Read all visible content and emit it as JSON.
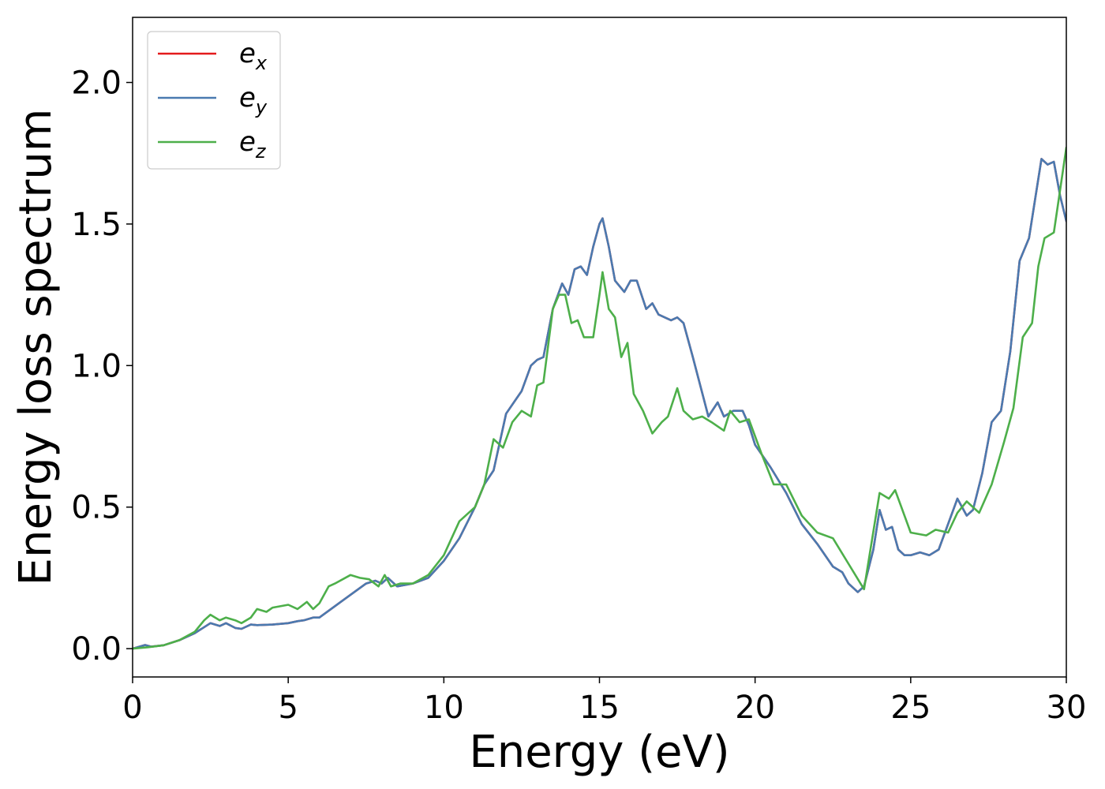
{
  "chart_data": {
    "type": "line",
    "title": "",
    "xlabel": "Energy (eV)",
    "ylabel": "Energy loss spectrum",
    "xlim": [
      0,
      30
    ],
    "ylim": [
      -0.1,
      2.23
    ],
    "xticks": [
      0,
      5,
      10,
      15,
      20,
      25,
      30
    ],
    "xtick_labels": [
      "0",
      "5",
      "10",
      "15",
      "20",
      "25",
      "30"
    ],
    "yticks": [
      0.0,
      0.5,
      1.0,
      1.5,
      2.0
    ],
    "ytick_labels": [
      "0.0",
      "0.5",
      "1.0",
      "1.5",
      "2.0"
    ],
    "grid": false,
    "legend_position": "top-left",
    "series": [
      {
        "name": "e_x",
        "label_main": "e",
        "label_sub": "x",
        "color": "#e41a1c",
        "x": [
          0,
          0.4,
          0.6,
          1.0,
          1.5,
          2.0,
          2.5,
          2.8,
          3.0,
          3.3,
          3.5,
          3.8,
          4.0,
          4.5,
          5.0,
          5.3,
          5.5,
          5.8,
          6.0,
          6.5,
          7.0,
          7.5,
          7.8,
          8.0,
          8.2,
          8.5,
          9.0,
          9.5,
          10.0,
          10.5,
          11.0,
          11.3,
          11.6,
          12.0,
          12.5,
          12.8,
          13.0,
          13.2,
          13.5,
          13.8,
          14.0,
          14.2,
          14.4,
          14.6,
          14.8,
          15.0,
          15.1,
          15.3,
          15.5,
          15.8,
          16.0,
          16.2,
          16.5,
          16.7,
          16.9,
          17.1,
          17.3,
          17.5,
          17.7,
          18.0,
          18.5,
          18.8,
          19.0,
          19.3,
          19.6,
          19.8,
          20.0,
          20.5,
          21.0,
          21.5,
          22.0,
          22.5,
          22.8,
          23.0,
          23.3,
          23.5,
          23.8,
          24.0,
          24.2,
          24.4,
          24.6,
          24.8,
          25.0,
          25.3,
          25.6,
          25.9,
          26.2,
          26.5,
          26.8,
          27.0,
          27.3,
          27.6,
          27.9,
          28.2,
          28.5,
          28.8,
          29.0,
          29.2,
          29.4,
          29.6,
          29.8,
          30.0
        ],
        "values": [
          0.0,
          0.013,
          0.007,
          0.012,
          0.03,
          0.055,
          0.09,
          0.08,
          0.09,
          0.073,
          0.07,
          0.085,
          0.083,
          0.085,
          0.09,
          0.097,
          0.1,
          0.11,
          0.11,
          0.15,
          0.19,
          0.23,
          0.24,
          0.23,
          0.25,
          0.22,
          0.23,
          0.25,
          0.31,
          0.39,
          0.5,
          0.58,
          0.63,
          0.83,
          0.91,
          1.0,
          1.02,
          1.03,
          1.2,
          1.29,
          1.25,
          1.34,
          1.35,
          1.32,
          1.42,
          1.5,
          1.52,
          1.42,
          1.3,
          1.26,
          1.3,
          1.3,
          1.2,
          1.22,
          1.18,
          1.17,
          1.16,
          1.17,
          1.15,
          1.03,
          0.82,
          0.87,
          0.82,
          0.84,
          0.84,
          0.79,
          0.72,
          0.64,
          0.55,
          0.44,
          0.37,
          0.29,
          0.27,
          0.23,
          0.2,
          0.22,
          0.35,
          0.49,
          0.42,
          0.43,
          0.35,
          0.33,
          0.33,
          0.34,
          0.33,
          0.35,
          0.44,
          0.53,
          0.47,
          0.49,
          0.62,
          0.8,
          0.84,
          1.05,
          1.37,
          1.45,
          1.59,
          1.73,
          1.71,
          1.72,
          1.6,
          1.51
        ]
      },
      {
        "name": "e_y",
        "label_main": "e",
        "label_sub": "y",
        "color": "#4a7ab0",
        "x": [
          0,
          0.4,
          0.6,
          1.0,
          1.5,
          2.0,
          2.5,
          2.8,
          3.0,
          3.3,
          3.5,
          3.8,
          4.0,
          4.5,
          5.0,
          5.3,
          5.5,
          5.8,
          6.0,
          6.5,
          7.0,
          7.5,
          7.8,
          8.0,
          8.2,
          8.5,
          9.0,
          9.5,
          10.0,
          10.5,
          11.0,
          11.3,
          11.6,
          12.0,
          12.5,
          12.8,
          13.0,
          13.2,
          13.5,
          13.8,
          14.0,
          14.2,
          14.4,
          14.6,
          14.8,
          15.0,
          15.1,
          15.3,
          15.5,
          15.8,
          16.0,
          16.2,
          16.5,
          16.7,
          16.9,
          17.1,
          17.3,
          17.5,
          17.7,
          18.0,
          18.5,
          18.8,
          19.0,
          19.3,
          19.6,
          19.8,
          20.0,
          20.5,
          21.0,
          21.5,
          22.0,
          22.5,
          22.8,
          23.0,
          23.3,
          23.5,
          23.8,
          24.0,
          24.2,
          24.4,
          24.6,
          24.8,
          25.0,
          25.3,
          25.6,
          25.9,
          26.2,
          26.5,
          26.8,
          27.0,
          27.3,
          27.6,
          27.9,
          28.2,
          28.5,
          28.8,
          29.0,
          29.2,
          29.4,
          29.6,
          29.8,
          30.0
        ],
        "values": [
          0.0,
          0.013,
          0.007,
          0.012,
          0.03,
          0.055,
          0.09,
          0.08,
          0.09,
          0.073,
          0.07,
          0.085,
          0.083,
          0.085,
          0.09,
          0.097,
          0.1,
          0.11,
          0.11,
          0.15,
          0.19,
          0.23,
          0.24,
          0.23,
          0.25,
          0.22,
          0.23,
          0.25,
          0.31,
          0.39,
          0.5,
          0.58,
          0.63,
          0.83,
          0.91,
          1.0,
          1.02,
          1.03,
          1.2,
          1.29,
          1.25,
          1.34,
          1.35,
          1.32,
          1.42,
          1.5,
          1.52,
          1.42,
          1.3,
          1.26,
          1.3,
          1.3,
          1.2,
          1.22,
          1.18,
          1.17,
          1.16,
          1.17,
          1.15,
          1.03,
          0.82,
          0.87,
          0.82,
          0.84,
          0.84,
          0.79,
          0.72,
          0.64,
          0.55,
          0.44,
          0.37,
          0.29,
          0.27,
          0.23,
          0.2,
          0.22,
          0.35,
          0.49,
          0.42,
          0.43,
          0.35,
          0.33,
          0.33,
          0.34,
          0.33,
          0.35,
          0.44,
          0.53,
          0.47,
          0.49,
          0.62,
          0.8,
          0.84,
          1.05,
          1.37,
          1.45,
          1.59,
          1.73,
          1.71,
          1.72,
          1.6,
          1.51
        ]
      },
      {
        "name": "e_z",
        "label_main": "e",
        "label_sub": "z",
        "color": "#4daf4a",
        "x": [
          0,
          0.5,
          1.0,
          1.5,
          2.0,
          2.3,
          2.5,
          2.8,
          3.0,
          3.3,
          3.5,
          3.8,
          4.0,
          4.3,
          4.5,
          5.0,
          5.3,
          5.6,
          5.8,
          6.0,
          6.3,
          6.5,
          7.0,
          7.3,
          7.6,
          7.9,
          8.1,
          8.3,
          8.6,
          9.0,
          9.5,
          10.0,
          10.5,
          11.0,
          11.3,
          11.6,
          11.9,
          12.2,
          12.5,
          12.8,
          13.0,
          13.2,
          13.5,
          13.7,
          13.9,
          14.1,
          14.3,
          14.5,
          14.8,
          15.0,
          15.1,
          15.3,
          15.5,
          15.7,
          15.9,
          16.1,
          16.4,
          16.7,
          17.0,
          17.2,
          17.5,
          17.7,
          18.0,
          18.3,
          18.6,
          19.0,
          19.2,
          19.5,
          19.8,
          20.2,
          20.6,
          21.0,
          21.5,
          22.0,
          22.5,
          23.0,
          23.5,
          24.0,
          24.3,
          24.5,
          24.7,
          25.0,
          25.5,
          25.8,
          26.2,
          26.5,
          26.8,
          27.2,
          27.6,
          28.0,
          28.3,
          28.6,
          28.9,
          29.1,
          29.3,
          29.6,
          29.8,
          30.0
        ],
        "values": [
          0.0,
          0.005,
          0.012,
          0.03,
          0.06,
          0.1,
          0.12,
          0.1,
          0.11,
          0.1,
          0.09,
          0.11,
          0.14,
          0.13,
          0.145,
          0.155,
          0.14,
          0.165,
          0.14,
          0.16,
          0.22,
          0.23,
          0.26,
          0.25,
          0.245,
          0.22,
          0.26,
          0.22,
          0.23,
          0.23,
          0.26,
          0.33,
          0.45,
          0.5,
          0.58,
          0.74,
          0.71,
          0.8,
          0.84,
          0.82,
          0.93,
          0.94,
          1.2,
          1.25,
          1.25,
          1.15,
          1.16,
          1.1,
          1.1,
          1.25,
          1.33,
          1.2,
          1.17,
          1.03,
          1.08,
          0.9,
          0.84,
          0.76,
          0.8,
          0.82,
          0.92,
          0.84,
          0.81,
          0.82,
          0.8,
          0.77,
          0.84,
          0.8,
          0.81,
          0.69,
          0.58,
          0.58,
          0.47,
          0.41,
          0.39,
          0.3,
          0.21,
          0.55,
          0.53,
          0.56,
          0.5,
          0.41,
          0.4,
          0.42,
          0.41,
          0.48,
          0.52,
          0.48,
          0.58,
          0.73,
          0.85,
          1.1,
          1.15,
          1.35,
          1.45,
          1.47,
          1.62,
          1.77
        ]
      }
    ]
  }
}
